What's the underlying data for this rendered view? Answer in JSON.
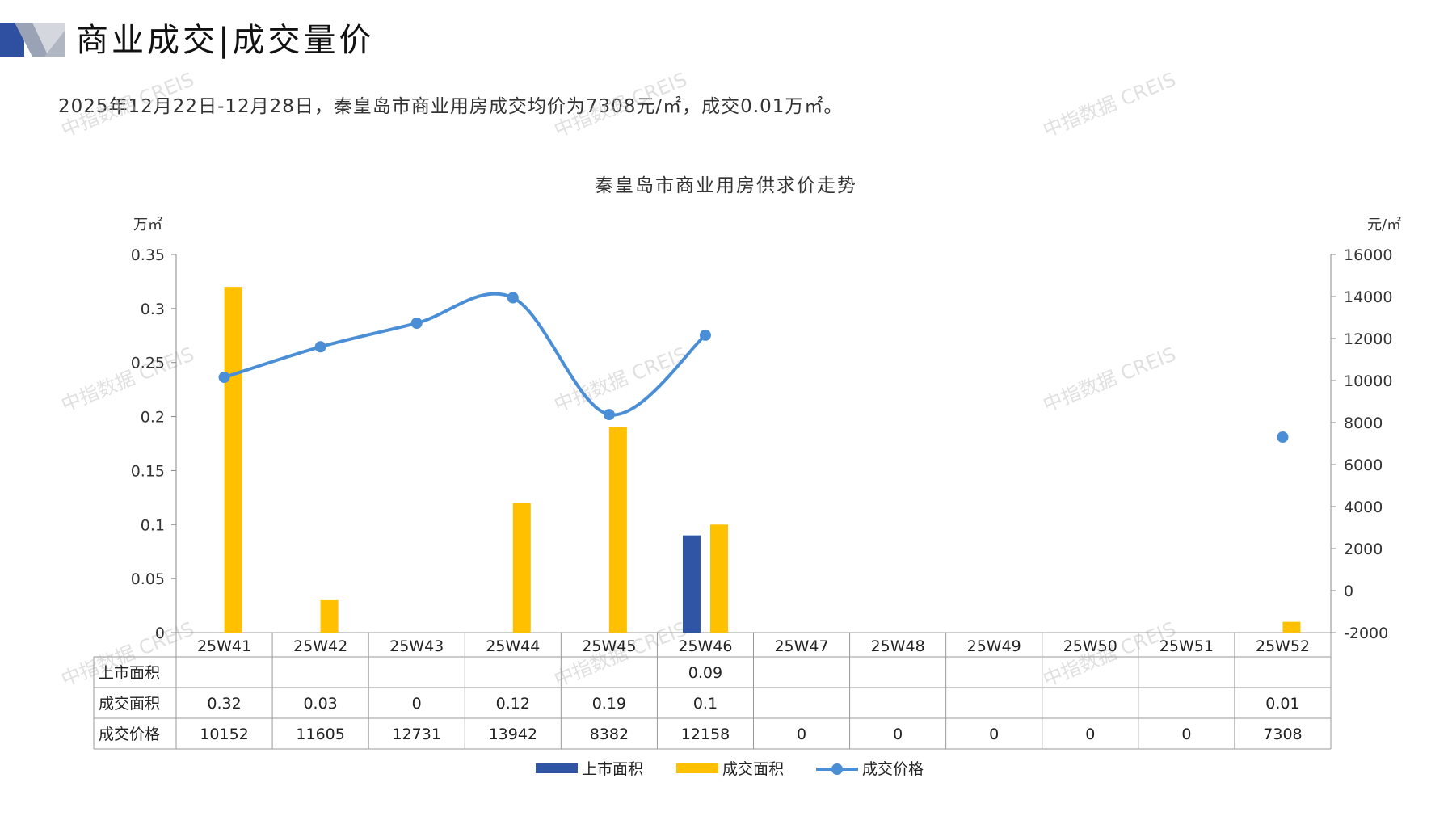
{
  "header": {
    "title": "商业成交|成交量价",
    "subtitle": "2025年12月22日-12月28日，秦皇岛市商业用房成交均价为7308元/㎡，成交0.01万㎡。"
  },
  "watermark": "中指数据 CREIS",
  "colors": {
    "listed": "#2F55A4",
    "deal_area": "#FFC000",
    "price": "#4A8ED6",
    "grid": "#999999"
  },
  "chart_data": {
    "type": "bar+line",
    "title": "秦皇岛市商业用房供求价走势",
    "y_left_unit": "万㎡",
    "y_right_unit": "元/㎡",
    "y_left_ticks": [
      "0",
      "0.05",
      "0.1",
      "0.15",
      "0.2",
      "0.25",
      "0.3",
      "0.35"
    ],
    "y_right_ticks": [
      "-2000",
      "0",
      "2000",
      "4000",
      "6000",
      "8000",
      "10000",
      "12000",
      "14000",
      "16000"
    ],
    "y_left_range": [
      0,
      0.35
    ],
    "y_right_range": [
      -2000,
      16000
    ],
    "categories": [
      "25W41",
      "25W42",
      "25W43",
      "25W44",
      "25W45",
      "25W46",
      "25W47",
      "25W48",
      "25W49",
      "25W50",
      "25W51",
      "25W52"
    ],
    "series": [
      {
        "name": "上市面积",
        "type": "bar",
        "axis": "left",
        "values": [
          null,
          null,
          null,
          null,
          null,
          0.09,
          null,
          null,
          null,
          null,
          null,
          null
        ],
        "labels": [
          "",
          "",
          "",
          "",
          "",
          "0.09",
          "",
          "",
          "",
          "",
          "",
          ""
        ]
      },
      {
        "name": "成交面积",
        "type": "bar",
        "axis": "left",
        "values": [
          0.32,
          0.03,
          0,
          0.12,
          0.19,
          0.1,
          null,
          null,
          null,
          null,
          null,
          0.01
        ],
        "labels": [
          "0.32",
          "0.03",
          "0",
          "0.12",
          "0.19",
          "0.1",
          "",
          "",
          "",
          "",
          "",
          "0.01"
        ]
      },
      {
        "name": "成交价格",
        "type": "line",
        "axis": "right",
        "values": [
          10152,
          11605,
          12731,
          13942,
          8382,
          12158,
          0,
          0,
          0,
          0,
          0,
          7308
        ],
        "labels": [
          "10152",
          "11605",
          "12731",
          "13942",
          "8382",
          "12158",
          "0",
          "0",
          "0",
          "0",
          "0",
          "7308"
        ]
      }
    ],
    "legend_position": "bottom",
    "grid": false
  }
}
